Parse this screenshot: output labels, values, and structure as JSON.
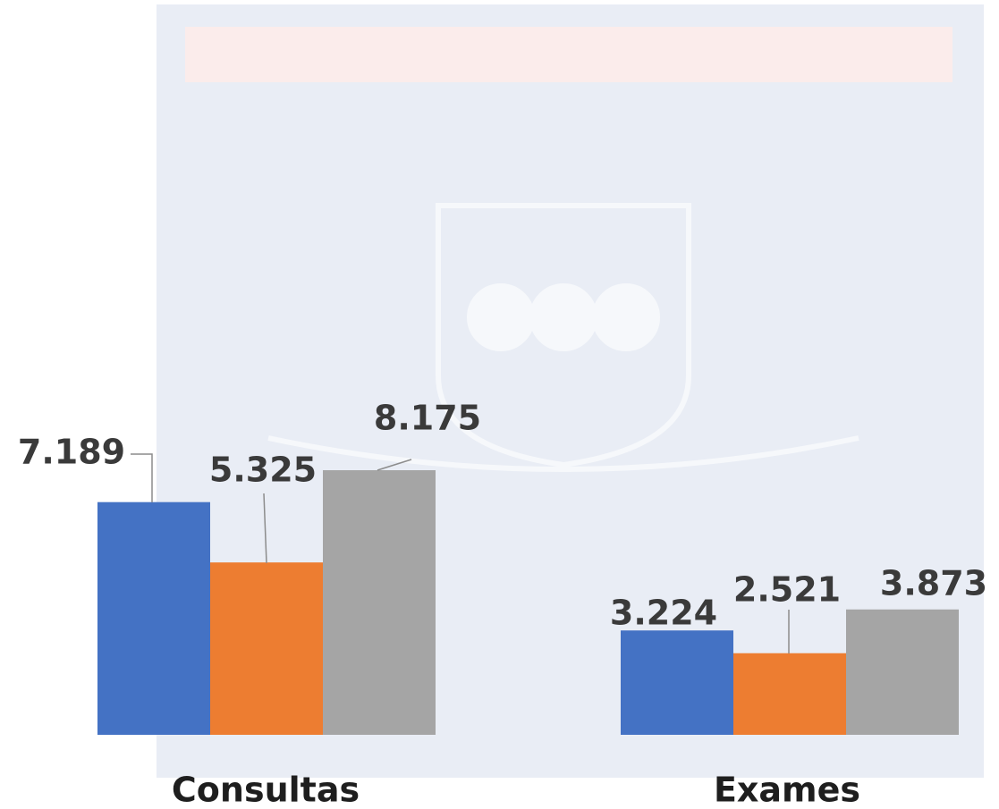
{
  "chart_data": {
    "type": "bar",
    "categories": [
      "Consultas",
      "Exames"
    ],
    "series": [
      {
        "color": "#4472c4",
        "values": [
          7189,
          3224
        ],
        "value_labels": [
          "7.189",
          "3.224"
        ]
      },
      {
        "color": "#ed7d31",
        "values": [
          5325,
          2521
        ],
        "value_labels": [
          "5.325",
          "2.521"
        ]
      },
      {
        "color": "#a5a5a5",
        "values": [
          8175,
          3873
        ],
        "value_labels": [
          "8.175",
          "3.873"
        ]
      }
    ]
  }
}
